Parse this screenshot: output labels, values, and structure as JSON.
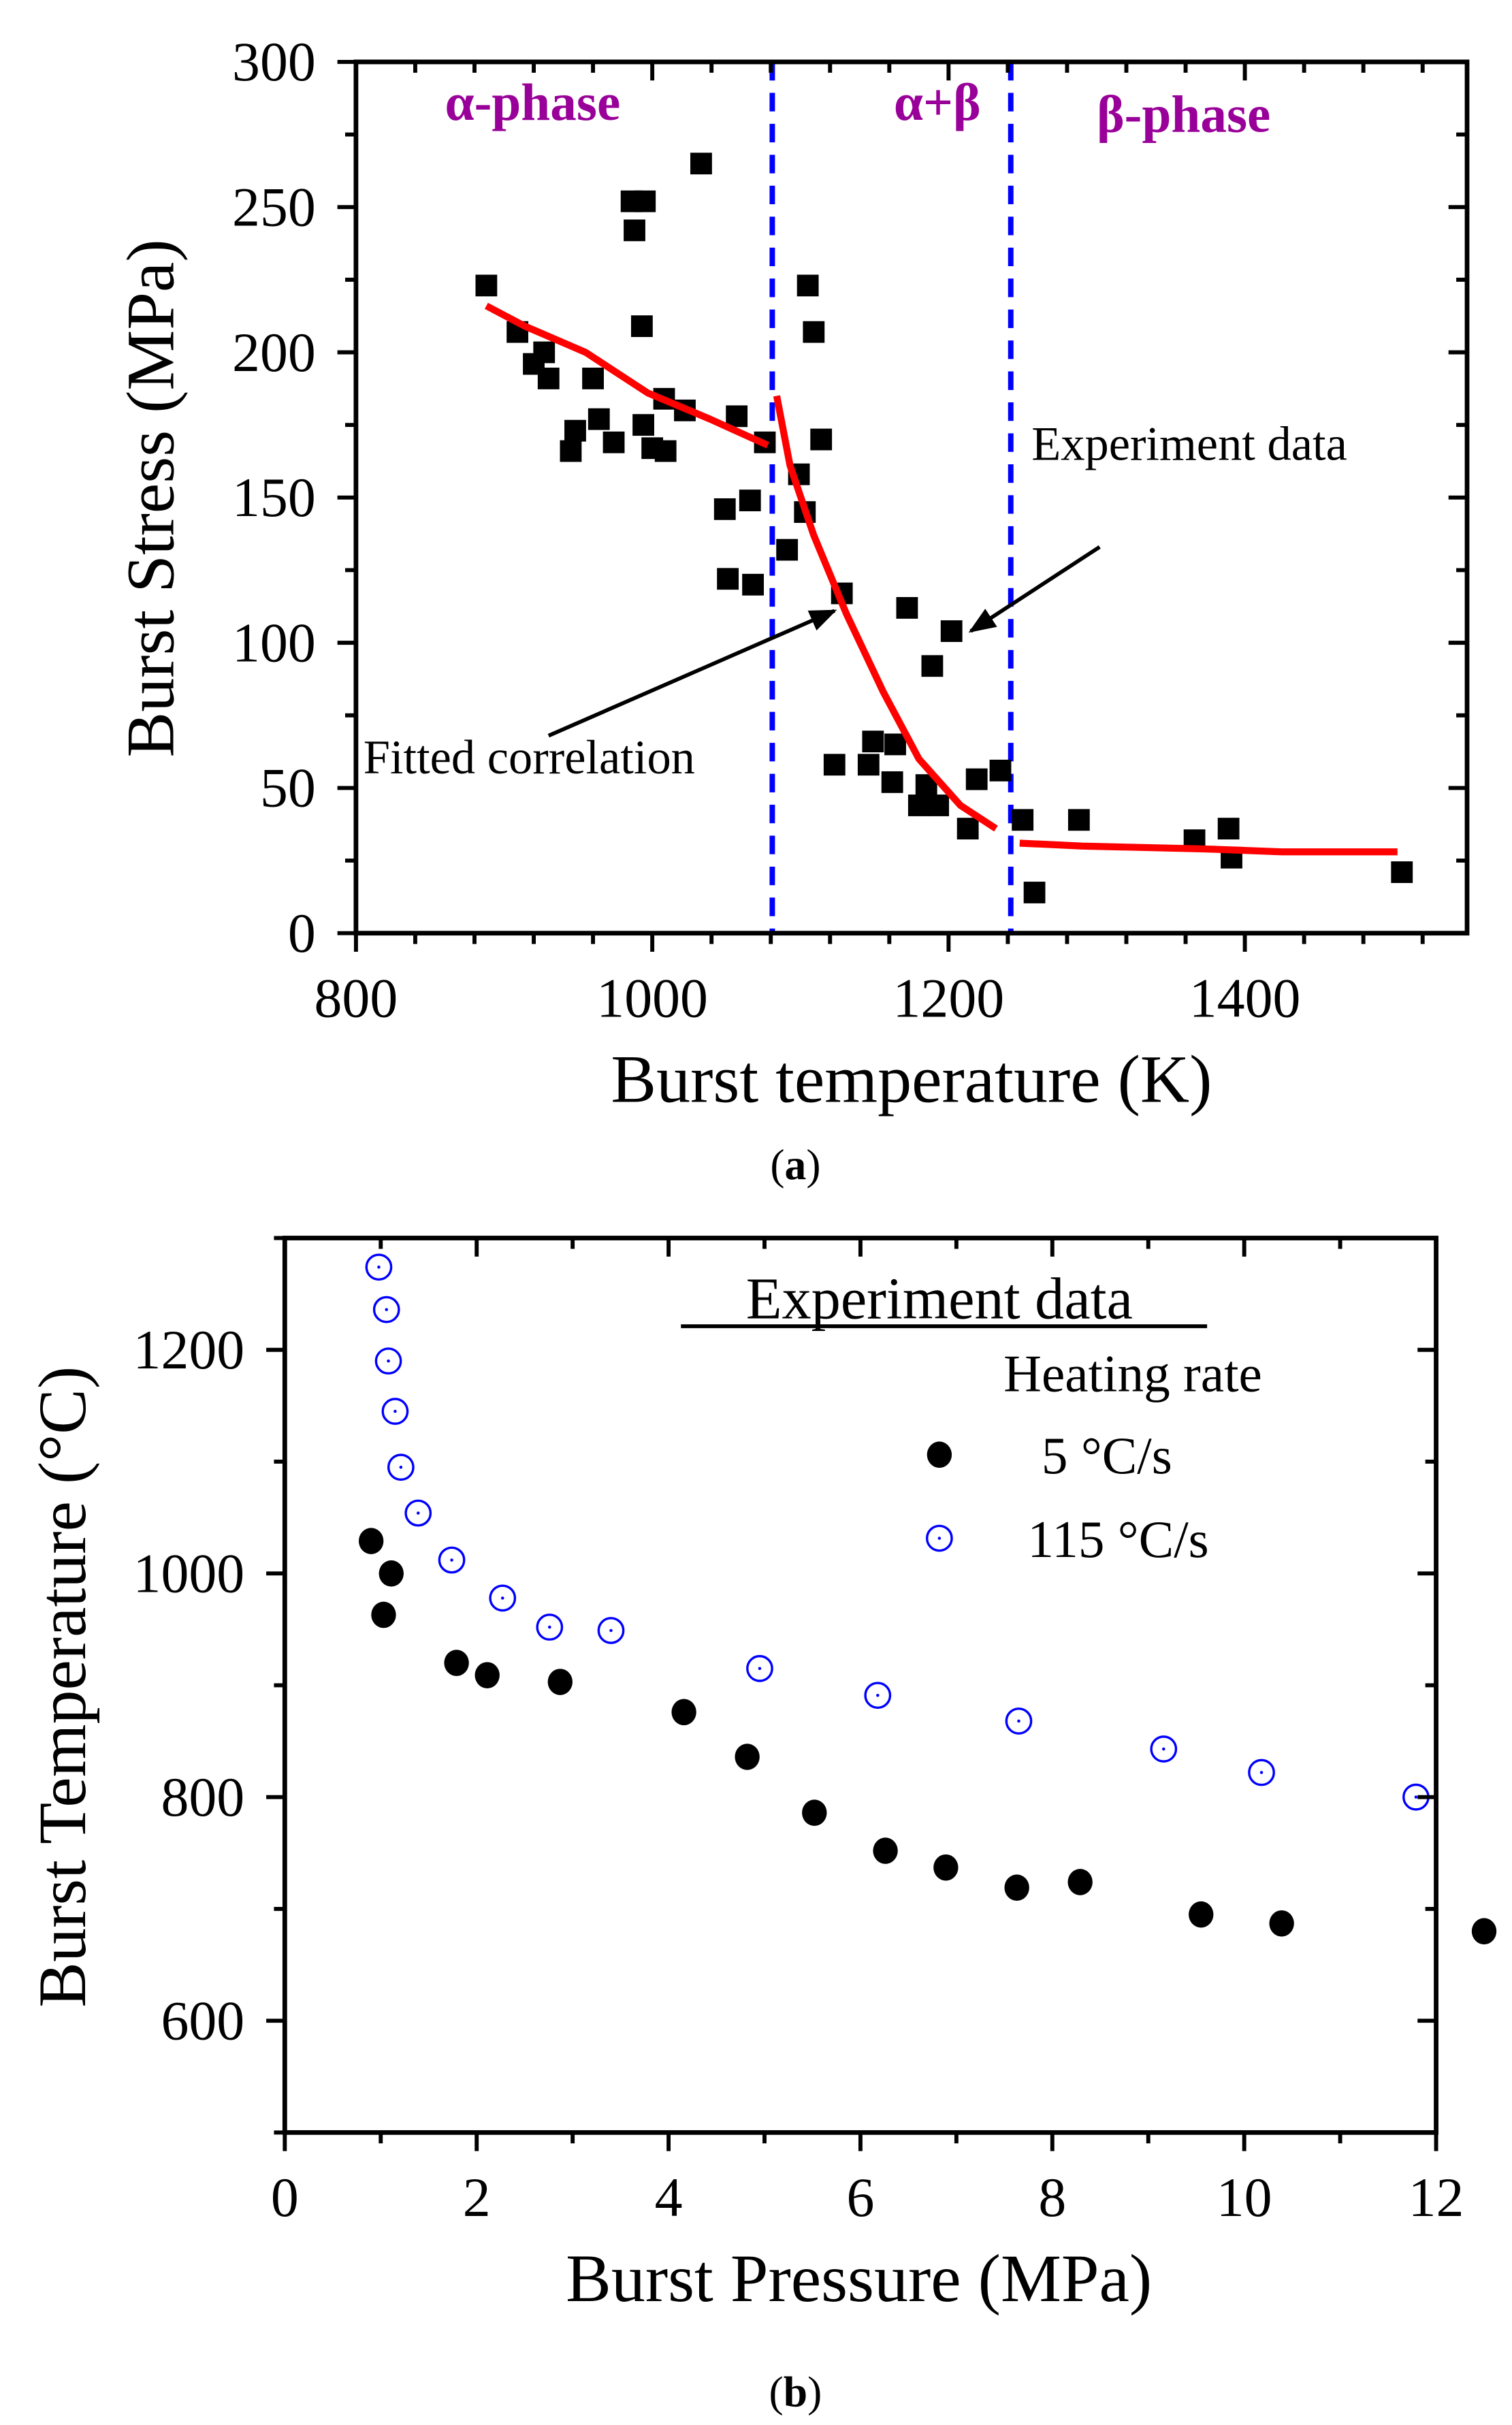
{
  "colors": {
    "fit": "#ff0000",
    "divider": "#0000ff",
    "phase": "#990099",
    "blue_series": "#0000ff",
    "black_series": "#000000"
  },
  "chart_data": [
    {
      "type": "scatter",
      "caption_open": "(",
      "caption_letter": "a",
      "caption_close": ")",
      "xlabel": "Burst temperature (K)",
      "ylabel": "Burst Stress (MPa)",
      "xlim": [
        800,
        1550
      ],
      "ylim": [
        0,
        300
      ],
      "xticks": [
        800,
        1000,
        1200,
        1400
      ],
      "xminor_step": 40,
      "yticks": [
        0,
        50,
        100,
        150,
        200,
        250,
        300
      ],
      "yminor_step": 25,
      "grid": false,
      "phase_labels": [
        {
          "text": "α-phase",
          "x": 860,
          "y": 280
        },
        {
          "text": "α+β",
          "x": 1163,
          "y": 280
        },
        {
          "text": "β-phase",
          "x": 1300,
          "y": 276
        }
      ],
      "phase_boundaries": [
        1081,
        1242
      ],
      "series": [
        {
          "name": "Experiment data",
          "marker": "square",
          "points": [
            [
              888,
              223
            ],
            [
              909,
              207
            ],
            [
              920,
              196
            ],
            [
              927,
              200
            ],
            [
              930,
              191
            ],
            [
              945,
              166
            ],
            [
              948,
              173
            ],
            [
              960,
              191
            ],
            [
              964,
              177
            ],
            [
              974,
              169
            ],
            [
              986,
              252
            ],
            [
              995,
              252
            ],
            [
              988,
              242
            ],
            [
              993,
              209
            ],
            [
              994,
              175
            ],
            [
              1000,
              167
            ],
            [
              1008,
              184
            ],
            [
              1009,
              166
            ],
            [
              1022,
              180
            ],
            [
              1033,
              265
            ],
            [
              1049,
              146
            ],
            [
              1051,
              122
            ],
            [
              1057,
              178
            ],
            [
              1066,
              149
            ],
            [
              1068,
              120
            ],
            [
              1076,
              169
            ],
            [
              1091,
              132
            ],
            [
              1099,
              158
            ],
            [
              1103,
              145
            ],
            [
              1105,
              223
            ],
            [
              1109,
              207
            ],
            [
              1114,
              170
            ],
            [
              1128,
              117
            ],
            [
              1123,
              58
            ],
            [
              1146,
              58
            ],
            [
              1149,
              66
            ],
            [
              1162,
              52
            ],
            [
              1164,
              65
            ],
            [
              1172,
              112
            ],
            [
              1180,
              44
            ],
            [
              1185,
              51
            ],
            [
              1189,
              92
            ],
            [
              1193,
              44
            ],
            [
              1202,
              104
            ],
            [
              1213,
              36
            ],
            [
              1219,
              53
            ],
            [
              1235,
              56
            ],
            [
              1250,
              39
            ],
            [
              1258,
              14
            ],
            [
              1288,
              39
            ],
            [
              1366,
              32
            ],
            [
              1389,
              36
            ],
            [
              1391,
              26
            ],
            [
              1506,
              21
            ]
          ]
        },
        {
          "name": "Fitted correlation",
          "marker": "line",
          "segments": [
            [
              [
                888,
                216
              ],
              [
                914,
                209
              ],
              [
                955,
                200
              ],
              [
                997,
                186
              ],
              [
                1039,
                177
              ],
              [
                1078,
                168
              ]
            ],
            [
              [
                1084,
                185
              ],
              [
                1093,
                161
              ],
              [
                1109,
                137
              ],
              [
                1131,
                110
              ],
              [
                1156,
                83
              ],
              [
                1180,
                60
              ],
              [
                1208,
                44
              ],
              [
                1232,
                36
              ]
            ],
            [
              [
                1248,
                31
              ],
              [
                1290,
                30
              ],
              [
                1373,
                29
              ],
              [
                1425,
                28
              ],
              [
                1503,
                28
              ]
            ]
          ]
        }
      ],
      "annotations": [
        {
          "text": "Fitted correlation",
          "text_at": [
            805,
            55
          ],
          "arrow_from": [
            930,
            68
          ],
          "arrow_to": [
            1123,
            111
          ]
        },
        {
          "text": "Experiment data",
          "text_at": [
            1256,
            163
          ],
          "arrow_from": [
            1302,
            133
          ],
          "arrow_to": [
            1215,
            104
          ]
        }
      ]
    },
    {
      "type": "scatter",
      "caption_open": "(",
      "caption_letter": "b",
      "caption_close": ")",
      "xlabel": "Burst Pressure (MPa)",
      "ylabel": "Burst Temperature (°C)",
      "xlim": [
        0,
        12
      ],
      "ylim": [
        500,
        1300
      ],
      "xticks": [
        0,
        2,
        4,
        6,
        8,
        10,
        12
      ],
      "xminor_step": 1,
      "yticks": [
        600,
        800,
        1000,
        1200
      ],
      "yminor_step": 100,
      "grid": false,
      "legend": {
        "title": "Experiment data",
        "subtitle": "Heating rate",
        "position": "top-right"
      },
      "series": [
        {
          "name": "5 °C/s",
          "marker": "filled-circle",
          "points": [
            [
              0.9,
              1029
            ],
            [
              1.11,
              1000
            ],
            [
              1.03,
              963
            ],
            [
              1.79,
              920
            ],
            [
              2.11,
              909
            ],
            [
              2.87,
              903
            ],
            [
              4.16,
              876
            ],
            [
              4.82,
              836
            ],
            [
              5.52,
              786
            ],
            [
              6.26,
              752
            ],
            [
              6.89,
              737
            ],
            [
              7.63,
              719
            ],
            [
              8.29,
              724
            ],
            [
              9.55,
              695
            ],
            [
              10.39,
              687
            ],
            [
              12.5,
              680
            ]
          ]
        },
        {
          "name": "115 °C/s",
          "marker": "open-circle-dot",
          "points": [
            [
              0.98,
              1274
            ],
            [
              1.06,
              1236
            ],
            [
              1.08,
              1190
            ],
            [
              1.15,
              1145
            ],
            [
              1.21,
              1095
            ],
            [
              1.39,
              1054
            ],
            [
              1.74,
              1012
            ],
            [
              2.27,
              978
            ],
            [
              2.76,
              952
            ],
            [
              3.4,
              949
            ],
            [
              4.95,
              915
            ],
            [
              6.18,
              891
            ],
            [
              7.65,
              868
            ],
            [
              9.16,
              843
            ],
            [
              10.18,
              822
            ],
            [
              11.79,
              800
            ]
          ]
        }
      ]
    }
  ]
}
